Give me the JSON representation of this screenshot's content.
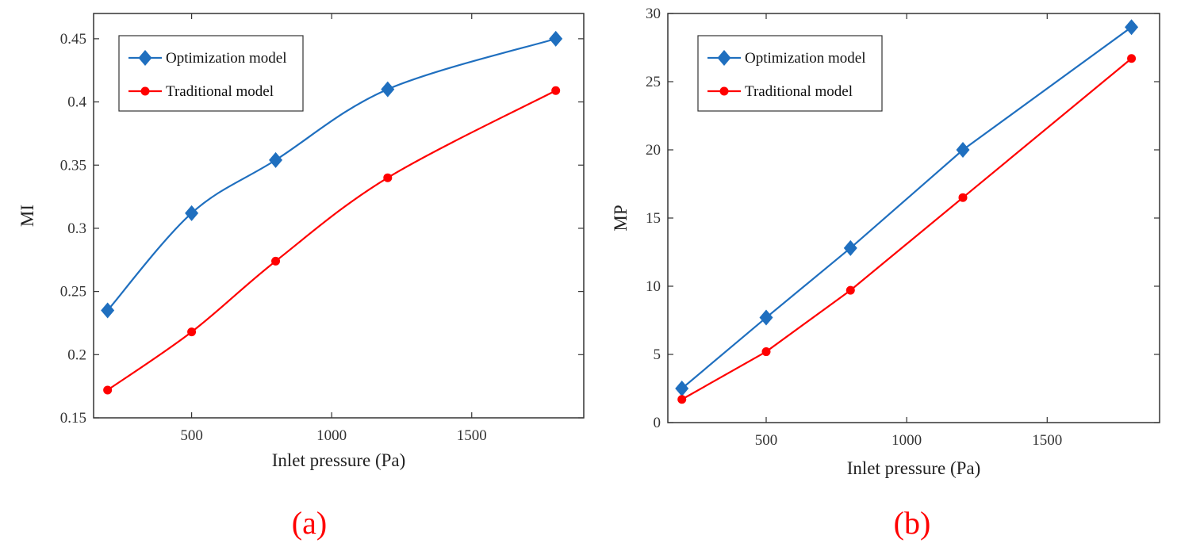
{
  "chart_data": [
    {
      "type": "line",
      "caption": "(a)",
      "xlabel": "Inlet pressure (Pa)",
      "ylabel": "MI",
      "xlim": [
        150,
        1900
      ],
      "ylim": [
        0.15,
        0.47
      ],
      "xticks": [
        500,
        1000,
        1500
      ],
      "yticks": [
        0.15,
        0.2,
        0.25,
        0.3,
        0.35,
        0.4,
        0.45
      ],
      "ytick_labels": [
        "0.15",
        "0.2",
        "0.25",
        "0.3",
        "0.35",
        "0.4",
        "0.45"
      ],
      "smooth": true,
      "legend_position": "top-left",
      "x": [
        200,
        500,
        800,
        1200,
        1800
      ],
      "series": [
        {
          "name": "Optimization model",
          "values": [
            0.235,
            0.312,
            0.354,
            0.41,
            0.45
          ],
          "color": "#1f6fbf",
          "marker": "diamond"
        },
        {
          "name": "Traditional model",
          "values": [
            0.172,
            0.218,
            0.274,
            0.34,
            0.409
          ],
          "color": "#ff0000",
          "marker": "circle"
        }
      ]
    },
    {
      "type": "line",
      "caption": "(b)",
      "xlabel": "Inlet pressure (Pa)",
      "ylabel": "MP",
      "xlim": [
        150,
        1900
      ],
      "ylim": [
        0,
        30
      ],
      "xticks": [
        500,
        1000,
        1500
      ],
      "yticks": [
        0,
        5,
        10,
        15,
        20,
        25,
        30
      ],
      "ytick_labels": [
        "0",
        "5",
        "10",
        "15",
        "20",
        "25",
        "30"
      ],
      "smooth": false,
      "legend_position": "top-left",
      "x": [
        200,
        500,
        800,
        1200,
        1800
      ],
      "series": [
        {
          "name": "Optimization model",
          "values": [
            2.5,
            7.7,
            12.8,
            20.0,
            29.0
          ],
          "color": "#1f6fbf",
          "marker": "diamond"
        },
        {
          "name": "Traditional model",
          "values": [
            1.7,
            5.2,
            9.7,
            16.5,
            26.7
          ],
          "color": "#ff0000",
          "marker": "circle"
        }
      ]
    }
  ]
}
